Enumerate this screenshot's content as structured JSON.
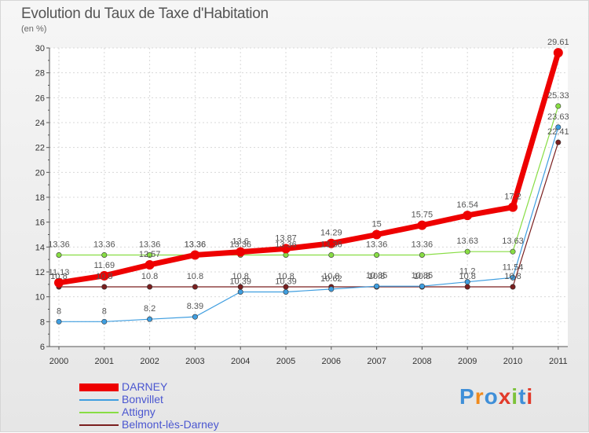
{
  "title": "Evolution du Taux de Taxe d'Habitation",
  "unit": "(en %)",
  "brand": "Proxiti",
  "chart_data": {
    "type": "line",
    "x": [
      "2000",
      "2001",
      "2002",
      "2003",
      "2004",
      "2005",
      "2006",
      "2007",
      "2008",
      "2009",
      "2010",
      "2011"
    ],
    "ylim": [
      6,
      30
    ],
    "yticks": [
      6,
      8,
      10,
      12,
      14,
      16,
      18,
      20,
      22,
      24,
      26,
      28,
      30
    ],
    "grid": true,
    "legend_position": "bottom-left",
    "series": [
      {
        "name": "DARNEY",
        "color": "#ee0000",
        "values": [
          11.13,
          11.69,
          12.57,
          13.36,
          13.6,
          13.87,
          14.29,
          15,
          15.75,
          16.54,
          17.2,
          29.61
        ],
        "labels": [
          "11.13",
          "11.69",
          "12.57",
          "13.36",
          "13.6",
          "13.87",
          "14.29",
          "15",
          "15.75",
          "16.54",
          "17.2",
          "29.61"
        ]
      },
      {
        "name": "Bonvillet",
        "color": "#3f9ee0",
        "values": [
          8,
          8,
          8.2,
          8.39,
          10.39,
          10.39,
          10.62,
          10.85,
          10.85,
          11.2,
          11.54,
          23.63
        ],
        "labels": [
          "8",
          "8",
          "8.2",
          "8.39",
          "10.39",
          "10.39",
          "10.62",
          "10.85",
          "10.85",
          "11.2",
          "11.54",
          "23.63"
        ]
      },
      {
        "name": "Attigny",
        "color": "#88dd44",
        "values": [
          13.36,
          13.36,
          13.36,
          13.36,
          13.36,
          13.36,
          13.36,
          13.36,
          13.36,
          13.63,
          13.63,
          25.33
        ],
        "labels": [
          "13.36",
          "13.36",
          "13.36",
          "13.36",
          "13.36",
          "13.36",
          "13.36",
          "13.36",
          "13.36",
          "13.63",
          "13.63",
          "25.33"
        ]
      },
      {
        "name": "Belmont-lès-Darney",
        "color": "#7a1f1f",
        "values": [
          10.8,
          10.8,
          10.8,
          10.8,
          10.8,
          10.8,
          10.8,
          10.8,
          10.8,
          10.8,
          10.8,
          22.41
        ],
        "labels": [
          "10.8",
          "10.8",
          "10.8",
          "10.8",
          "10.8",
          "10.8",
          "10.8",
          "10.8",
          "10.8",
          "10.8",
          "10.8",
          "22.41"
        ]
      }
    ]
  }
}
